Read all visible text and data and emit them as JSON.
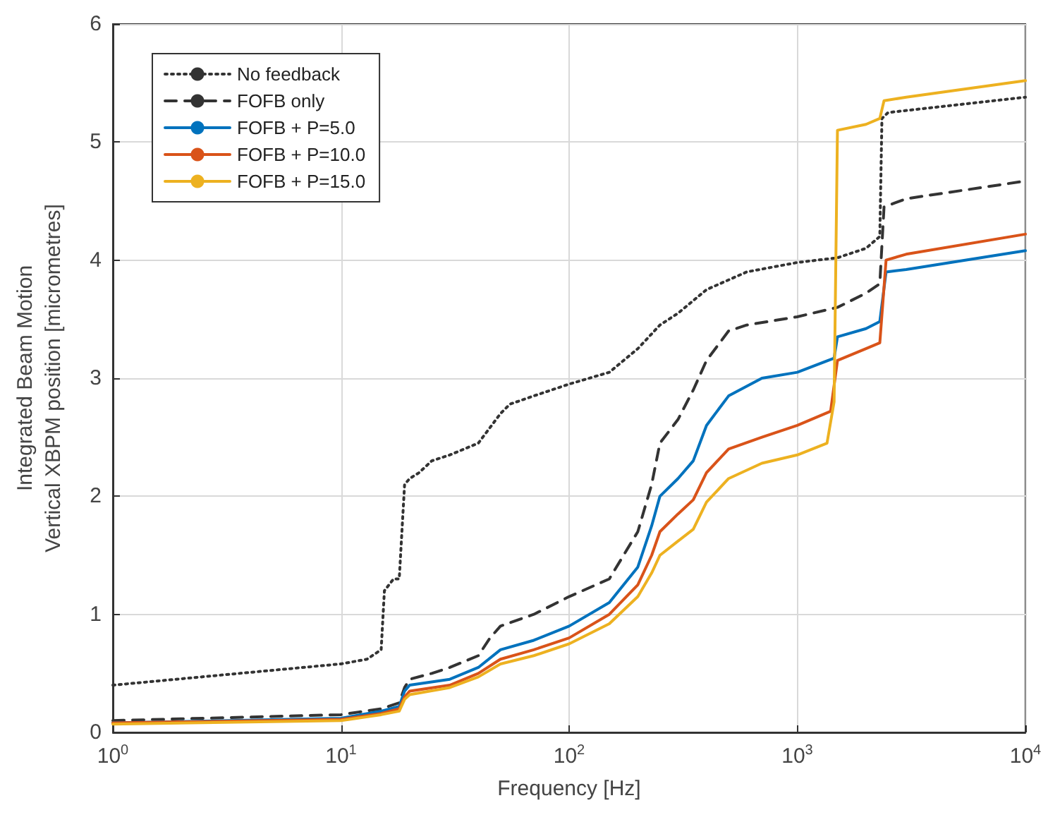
{
  "chart_data": {
    "type": "line",
    "xlabel": "Frequency [Hz]",
    "ylabel": "Integrated Beam Motion\nVertical XBPM position [micrometres]",
    "log": "x",
    "xlim": [
      1,
      10000
    ],
    "xticks": [
      {
        "value": 1,
        "label": "10$^{0}$"
      },
      {
        "value": 10,
        "label": "10$^{1}$"
      },
      {
        "value": 100,
        "label": "10$^{2}$"
      },
      {
        "value": 1000,
        "label": "10$^{3}$"
      },
      {
        "value": 10000,
        "label": "10$^{4}$"
      }
    ],
    "ylim": [
      0,
      6
    ],
    "yticks": [
      0,
      1,
      2,
      3,
      4,
      5,
      6
    ],
    "grid": true,
    "legend": "top left",
    "marker": "none",
    "series": [
      {
        "name": "No feedback",
        "color": "#333333",
        "line_style": "dotted",
        "x": [
          1,
          10,
          13,
          15,
          15.5,
          17,
          18,
          19,
          20,
          22,
          25,
          30,
          40,
          50,
          55,
          70,
          100,
          150,
          200,
          250,
          300,
          400,
          600,
          1000,
          1500,
          2000,
          2300,
          2350,
          2500,
          10000
        ],
        "values": [
          0.4,
          0.58,
          0.62,
          0.7,
          1.2,
          1.3,
          1.3,
          2.1,
          2.15,
          2.2,
          2.3,
          2.35,
          2.45,
          2.7,
          2.78,
          2.85,
          2.95,
          3.05,
          3.25,
          3.45,
          3.55,
          3.75,
          3.9,
          3.98,
          4.02,
          4.1,
          4.2,
          5.2,
          5.25,
          5.38
        ]
      },
      {
        "name": "FOFB only",
        "color": "#333333",
        "line_style": "dashed",
        "x": [
          1,
          10,
          15,
          18,
          19,
          20,
          25,
          30,
          40,
          45,
          50,
          70,
          100,
          150,
          200,
          230,
          250,
          300,
          350,
          400,
          500,
          600,
          1000,
          1500,
          2000,
          2300,
          2400,
          3000,
          10000
        ],
        "values": [
          0.1,
          0.15,
          0.2,
          0.25,
          0.38,
          0.45,
          0.5,
          0.55,
          0.65,
          0.8,
          0.9,
          1.0,
          1.15,
          1.3,
          1.7,
          2.1,
          2.45,
          2.65,
          2.9,
          3.15,
          3.4,
          3.45,
          3.52,
          3.6,
          3.72,
          3.8,
          4.45,
          4.52,
          4.67
        ]
      },
      {
        "name": "FOFB + P=5.0",
        "color": "#0072bd",
        "line_style": "solid",
        "x": [
          1,
          10,
          15,
          18,
          19,
          20,
          30,
          40,
          50,
          70,
          100,
          150,
          200,
          230,
          250,
          300,
          350,
          400,
          500,
          700,
          1000,
          1450,
          1500,
          2000,
          2300,
          2450,
          3000,
          10000
        ],
        "values": [
          0.08,
          0.12,
          0.18,
          0.22,
          0.35,
          0.4,
          0.45,
          0.55,
          0.7,
          0.78,
          0.9,
          1.1,
          1.4,
          1.75,
          2.0,
          2.15,
          2.3,
          2.6,
          2.85,
          3.0,
          3.05,
          3.17,
          3.35,
          3.42,
          3.48,
          3.9,
          3.92,
          4.08
        ]
      },
      {
        "name": "FOFB + P=10.0",
        "color": "#d95319",
        "line_style": "solid",
        "x": [
          1,
          10,
          15,
          18,
          19,
          20,
          30,
          40,
          50,
          70,
          100,
          150,
          200,
          230,
          250,
          300,
          350,
          400,
          500,
          700,
          1000,
          1400,
          1500,
          2000,
          2300,
          2450,
          3000,
          10000
        ],
        "values": [
          0.08,
          0.11,
          0.16,
          0.2,
          0.3,
          0.35,
          0.4,
          0.5,
          0.62,
          0.7,
          0.8,
          1.0,
          1.25,
          1.5,
          1.7,
          1.85,
          1.97,
          2.2,
          2.4,
          2.5,
          2.6,
          2.72,
          3.15,
          3.25,
          3.3,
          4.0,
          4.05,
          4.22
        ]
      },
      {
        "name": "FOFB + P=15.0",
        "color": "#edb120",
        "line_style": "solid",
        "x": [
          1,
          10,
          15,
          18,
          19,
          20,
          30,
          40,
          50,
          70,
          100,
          150,
          200,
          230,
          250,
          300,
          350,
          400,
          500,
          700,
          1000,
          1350,
          1450,
          1500,
          2000,
          2300,
          2400,
          3000,
          10000
        ],
        "values": [
          0.07,
          0.1,
          0.15,
          0.18,
          0.28,
          0.32,
          0.38,
          0.47,
          0.58,
          0.65,
          0.75,
          0.92,
          1.15,
          1.35,
          1.5,
          1.62,
          1.72,
          1.95,
          2.15,
          2.28,
          2.35,
          2.45,
          2.8,
          5.1,
          5.15,
          5.2,
          5.35,
          5.38,
          5.52
        ]
      }
    ]
  }
}
